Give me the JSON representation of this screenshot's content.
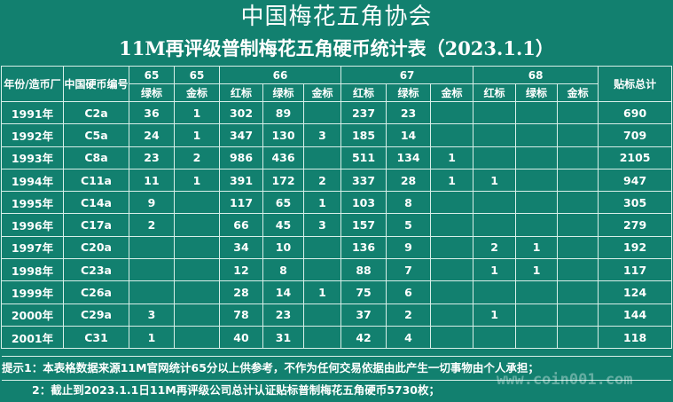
{
  "title": "中国梅花五角协会",
  "subtitle": "11M再评级普制梅花五角硬币统计表（2023.1.1）",
  "header": {
    "year_label": "年份/造币厂",
    "code_label": "中国硬币编号",
    "g65": "65",
    "g65_green": "绿标",
    "g65b": "65",
    "g65b_gold": "金标",
    "g66": "66",
    "g67": "67",
    "g68": "68",
    "red": "红标",
    "green": "绿标",
    "gold": "金标",
    "total": "贴标总计"
  },
  "rows": [
    {
      "year": "1991年",
      "code": "C2a",
      "g65g": "36",
      "g65j": "1",
      "r66": "302",
      "g66": "89",
      "j66": "",
      "r67": "237",
      "g67": "23",
      "j67": "",
      "r68": "",
      "g68": "",
      "j68": "",
      "total": "690"
    },
    {
      "year": "1992年",
      "code": "C5a",
      "g65g": "24",
      "g65j": "1",
      "r66": "347",
      "g66": "130",
      "j66": "3",
      "r67": "185",
      "g67": "14",
      "j67": "",
      "r68": "",
      "g68": "",
      "j68": "",
      "total": "709"
    },
    {
      "year": "1993年",
      "code": "C8a",
      "g65g": "23",
      "g65j": "2",
      "r66": "986",
      "g66": "436",
      "j66": "",
      "r67": "511",
      "g67": "134",
      "j67": "1",
      "r68": "",
      "g68": "",
      "j68": "",
      "total": "2105"
    },
    {
      "year": "1994年",
      "code": "C11a",
      "g65g": "11",
      "g65j": "1",
      "r66": "391",
      "g66": "172",
      "j66": "2",
      "r67": "337",
      "g67": "28",
      "j67": "1",
      "r68": "1",
      "g68": "",
      "j68": "",
      "total": "947"
    },
    {
      "year": "1995年",
      "code": "C14a",
      "g65g": "9",
      "g65j": "",
      "r66": "117",
      "g66": "65",
      "j66": "1",
      "r67": "103",
      "g67": "8",
      "j67": "",
      "r68": "",
      "g68": "",
      "j68": "",
      "total": "305"
    },
    {
      "year": "1996年",
      "code": "C17a",
      "g65g": "2",
      "g65j": "",
      "r66": "66",
      "g66": "45",
      "j66": "3",
      "r67": "157",
      "g67": "5",
      "j67": "",
      "r68": "",
      "g68": "",
      "j68": "",
      "total": "279"
    },
    {
      "year": "1997年",
      "code": "C20a",
      "g65g": "",
      "g65j": "",
      "r66": "34",
      "g66": "10",
      "j66": "",
      "r67": "136",
      "g67": "9",
      "j67": "",
      "r68": "2",
      "g68": "1",
      "j68": "",
      "total": "192"
    },
    {
      "year": "1998年",
      "code": "C23a",
      "g65g": "",
      "g65j": "",
      "r66": "12",
      "g66": "8",
      "j66": "",
      "r67": "88",
      "g67": "7",
      "j67": "",
      "r68": "1",
      "g68": "1",
      "j68": "",
      "total": "117"
    },
    {
      "year": "1999年",
      "code": "C26a",
      "g65g": "",
      "g65j": "",
      "r66": "28",
      "g66": "14",
      "j66": "1",
      "r67": "75",
      "g67": "6",
      "j67": "",
      "r68": "",
      "g68": "",
      "j68": "",
      "total": "124"
    },
    {
      "year": "2000年",
      "code": "C29a",
      "g65g": "3",
      "g65j": "",
      "r66": "78",
      "g66": "23",
      "j66": "",
      "r67": "37",
      "g67": "2",
      "j67": "",
      "r68": "1",
      "g68": "",
      "j68": "",
      "total": "144"
    },
    {
      "year": "2001年",
      "code": "C31",
      "g65g": "1",
      "g65j": "",
      "r66": "40",
      "g66": "31",
      "j66": "",
      "r67": "42",
      "g67": "4",
      "j67": "",
      "r68": "",
      "g68": "",
      "j68": "",
      "total": "118"
    }
  ],
  "notes": {
    "note1": "提示1：本表格数据来源11M官网统计65分以上供参考，不作为任何交易依据由此产生一切事物由个人承担；",
    "note2": "2：截止到2023.1.1日11M再评级公司总计认证贴标普制梅花五角硬币5730枚；"
  },
  "watermark": "www.coin001.com",
  "colors": {
    "background": "#12806f",
    "text": "#ffffff",
    "grid": "#d8efe9"
  }
}
